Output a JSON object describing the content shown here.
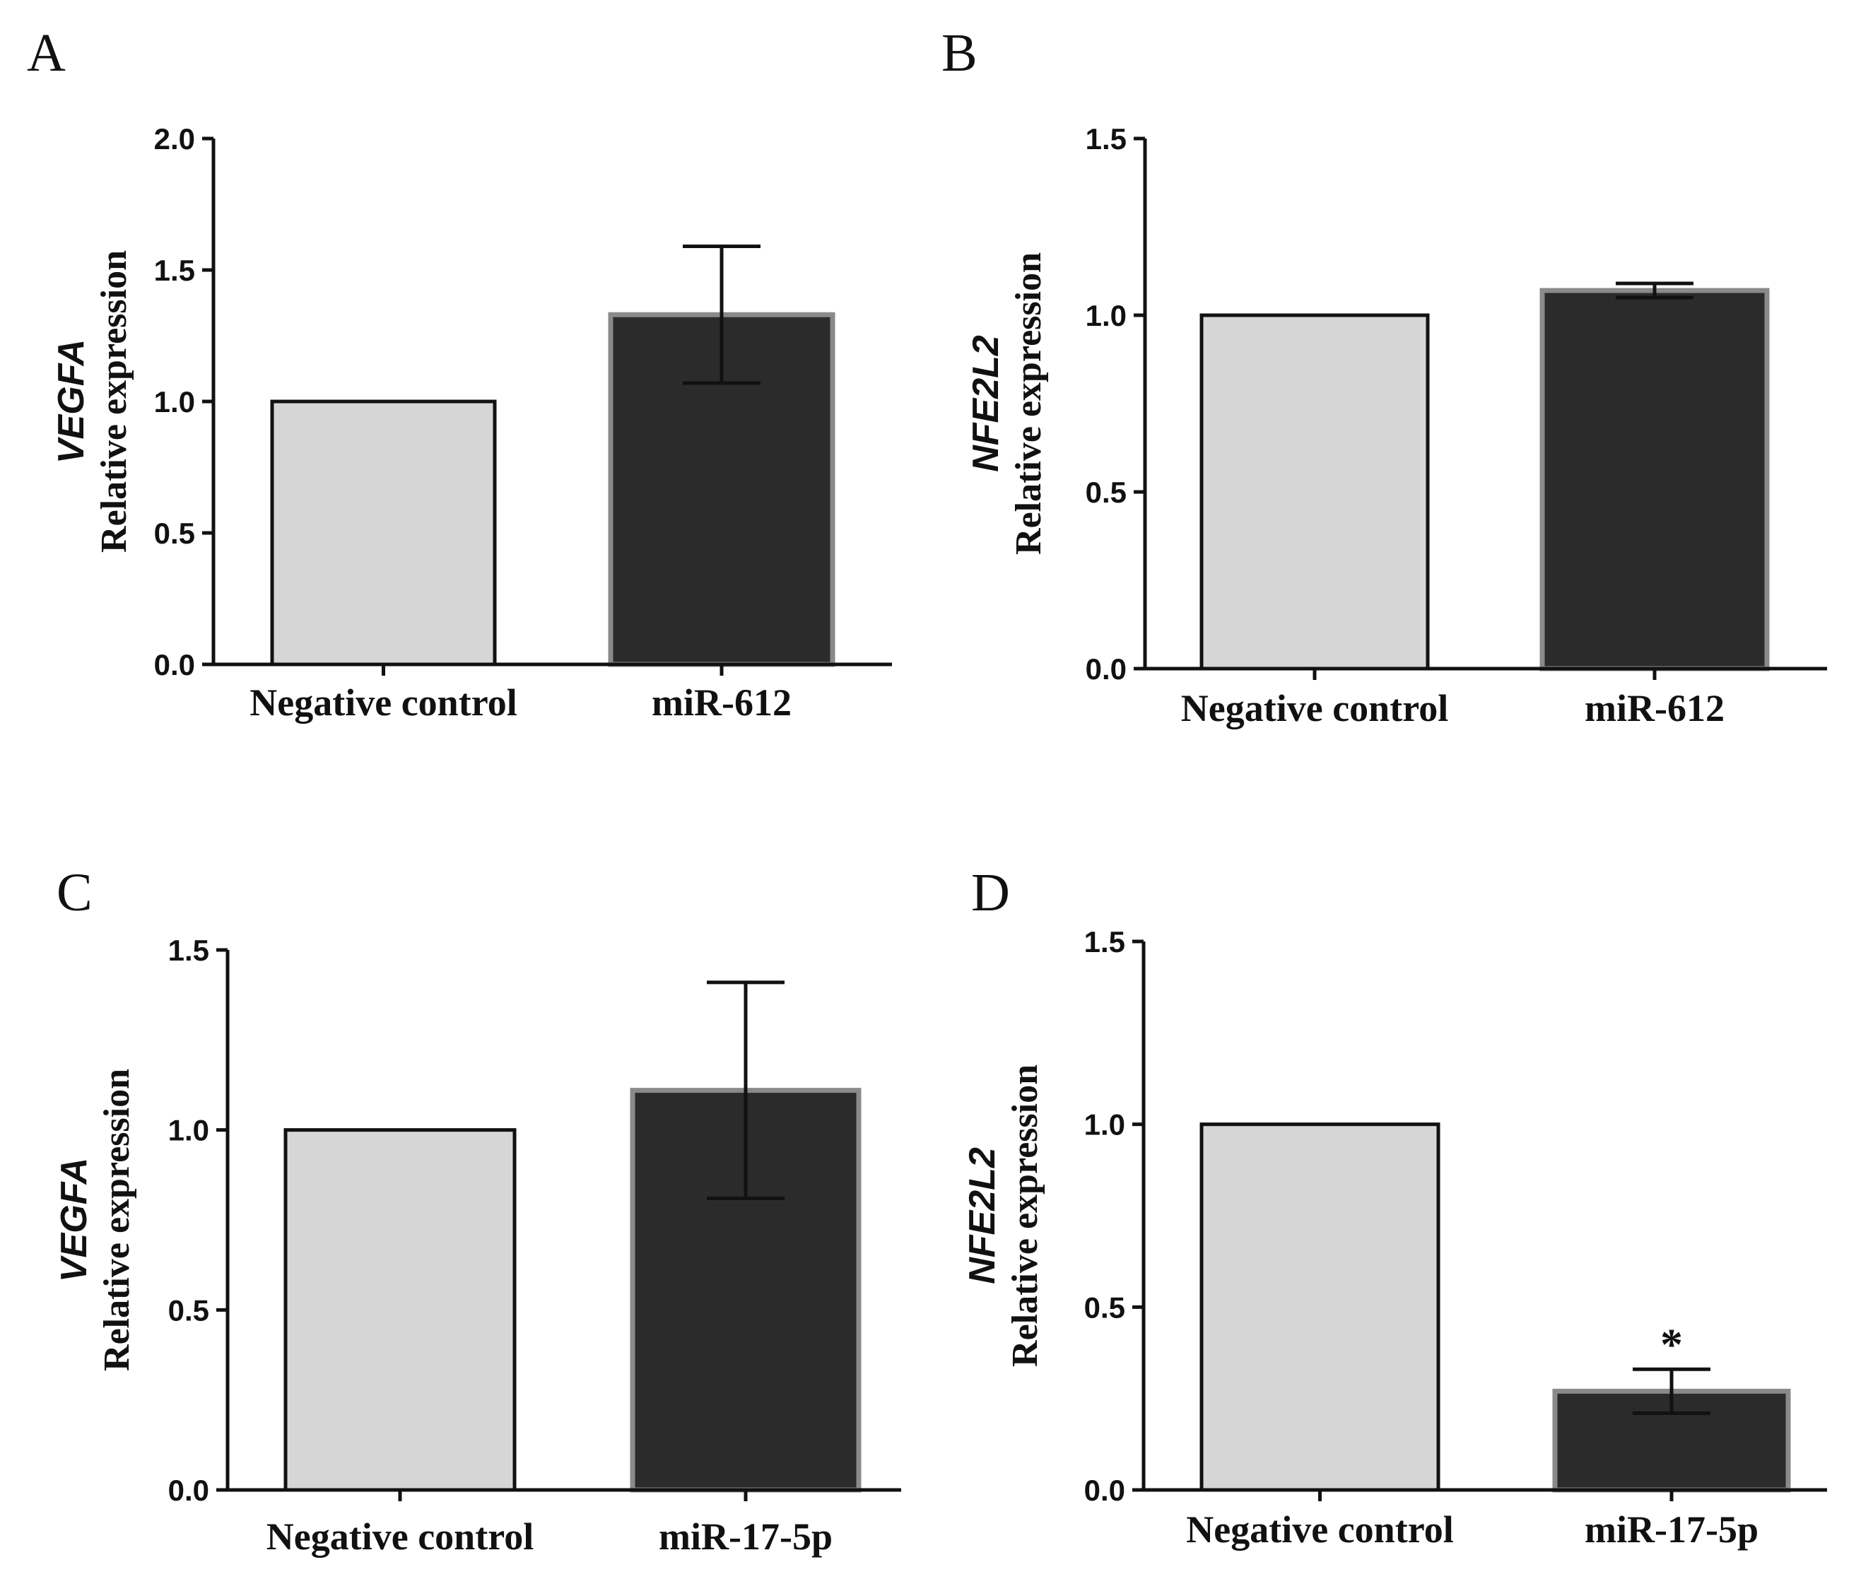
{
  "chart_data": [
    {
      "panel": "A",
      "type": "bar",
      "gene": "VEGFA",
      "ylabel": "Relative expression",
      "categories": [
        "Negative control",
        "miR-612"
      ],
      "values": [
        1.0,
        1.33
      ],
      "errors": [
        null,
        [
          1.07,
          1.59
        ]
      ],
      "significance": [
        "",
        ""
      ],
      "ylim": [
        0,
        2.0
      ],
      "yticks": [
        "0.0",
        "0.5",
        "1.0",
        "1.5",
        "2.0"
      ],
      "bar_colors": [
        "#d6d6d6",
        "#2b2b2b"
      ]
    },
    {
      "panel": "B",
      "type": "bar",
      "gene": "NFE2L2",
      "ylabel": "Relative expression",
      "categories": [
        "Negative control",
        "miR-612"
      ],
      "values": [
        1.0,
        1.07
      ],
      "errors": [
        null,
        [
          1.05,
          1.09
        ]
      ],
      "significance": [
        "",
        ""
      ],
      "ylim": [
        0,
        1.5
      ],
      "yticks": [
        "0.0",
        "0.5",
        "1.0",
        "1.5"
      ],
      "bar_colors": [
        "#d6d6d6",
        "#2b2b2b"
      ]
    },
    {
      "panel": "C",
      "type": "bar",
      "gene": "VEGFA",
      "ylabel": "Relative expression",
      "categories": [
        "Negative control",
        "miR-17-5p"
      ],
      "values": [
        1.0,
        1.11
      ],
      "errors": [
        null,
        [
          0.81,
          1.41
        ]
      ],
      "significance": [
        "",
        ""
      ],
      "ylim": [
        0,
        1.5
      ],
      "yticks": [
        "0.0",
        "0.5",
        "1.0",
        "1.5"
      ],
      "bar_colors": [
        "#d6d6d6",
        "#2b2b2b"
      ]
    },
    {
      "panel": "D",
      "type": "bar",
      "gene": "NFE2L2",
      "ylabel": "Relative expression",
      "categories": [
        "Negative control",
        "miR-17-5p"
      ],
      "values": [
        1.0,
        0.27
      ],
      "errors": [
        null,
        [
          0.21,
          0.33
        ]
      ],
      "significance": [
        "",
        "*"
      ],
      "ylim": [
        0,
        1.5
      ],
      "yticks": [
        "0.0",
        "0.5",
        "1.0",
        "1.5"
      ],
      "bar_colors": [
        "#d6d6d6",
        "#2b2b2b"
      ]
    }
  ]
}
